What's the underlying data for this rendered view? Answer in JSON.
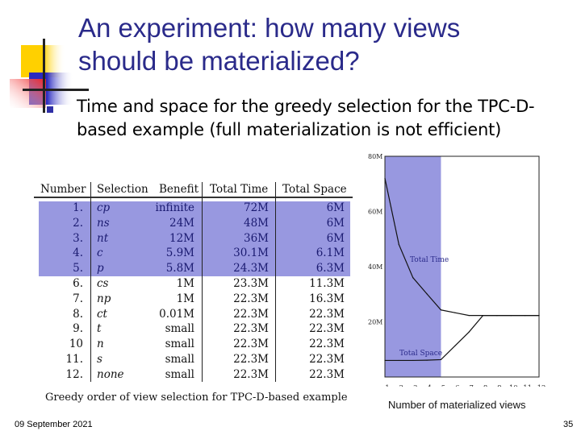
{
  "slide": {
    "title_line1": "An experiment: how many views",
    "title_line2": "should be materialized?",
    "bullet": "Time and space for the greedy selection for the TPC-D-based example (full materialization is not efficient)",
    "footer_date": "09 September 2021",
    "page_number": "35",
    "accent_color": "#2a2a8a",
    "highlight_color": "#9898e0"
  },
  "table": {
    "headers": [
      "Number",
      "Selection",
      "Benefit",
      "Total Time",
      "Total Space"
    ],
    "rows": [
      [
        "1.",
        "cp",
        "infinite",
        "72M",
        "6M"
      ],
      [
        "2.",
        "ns",
        "24M",
        "48M",
        "6M"
      ],
      [
        "3.",
        "nt",
        "12M",
        "36M",
        "6M"
      ],
      [
        "4.",
        "c",
        "5.9M",
        "30.1M",
        "6.1M"
      ],
      [
        "5.",
        "p",
        "5.8M",
        "24.3M",
        "6.3M"
      ],
      [
        "6.",
        "cs",
        "1M",
        "23.3M",
        "11.3M"
      ],
      [
        "7.",
        "np",
        "1M",
        "22.3M",
        "16.3M"
      ],
      [
        "8.",
        "ct",
        "0.01M",
        "22.3M",
        "22.3M"
      ],
      [
        "9.",
        "t",
        "small",
        "22.3M",
        "22.3M"
      ],
      [
        "10",
        "n",
        "small",
        "22.3M",
        "22.3M"
      ],
      [
        "11.",
        "s",
        "small",
        "22.3M",
        "22.3M"
      ],
      [
        "12.",
        "none",
        "small",
        "22.3M",
        "22.3M"
      ]
    ],
    "highlighted_rows": 5,
    "caption": "Greedy order of view selection for TPC-D-based example"
  },
  "chart_data": {
    "type": "line",
    "xlabel": "Number of materialized views",
    "x": [
      1,
      2,
      3,
      4,
      5,
      6,
      7,
      8,
      9,
      10,
      11,
      12
    ],
    "xticks": [
      "1",
      "2",
      "3",
      "4",
      "5",
      "6",
      "7",
      "8",
      "9",
      "10",
      "11",
      "12"
    ],
    "yticks": [
      "80M",
      "60M",
      "40M",
      "20M"
    ],
    "ytick_values": [
      80,
      60,
      40,
      20
    ],
    "ylim": [
      0,
      80
    ],
    "xlim": [
      1,
      12
    ],
    "highlight_x_range": [
      1,
      5
    ],
    "series": [
      {
        "name": "Total Time",
        "values": [
          72,
          48,
          36,
          30.1,
          24.3,
          23.3,
          22.3,
          22.3,
          22.3,
          22.3,
          22.3,
          22.3
        ]
      },
      {
        "name": "Total Space",
        "values": [
          6,
          6,
          6,
          6.1,
          6.3,
          11.3,
          16.3,
          22.3,
          22.3,
          22.3,
          22.3,
          22.3
        ]
      }
    ]
  }
}
